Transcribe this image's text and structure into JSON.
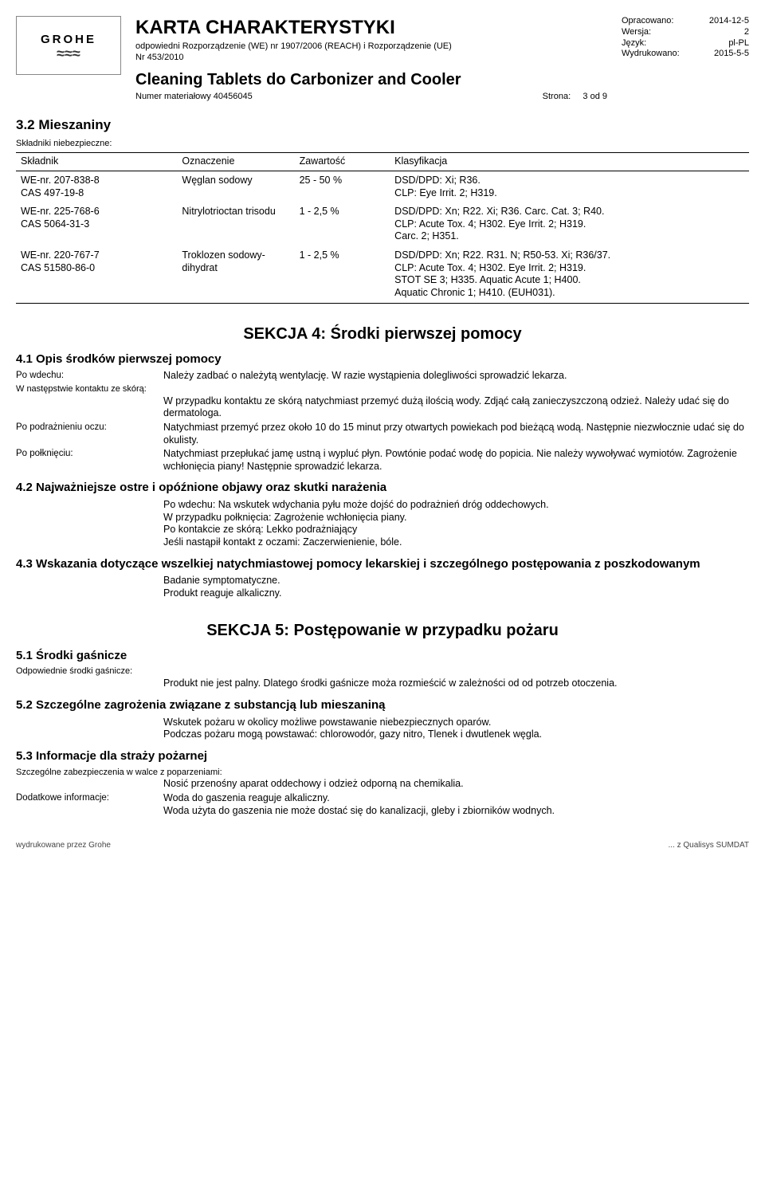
{
  "logo_text": "GROHE",
  "header": {
    "karta": "KARTA CHARAKTERYSTYKI",
    "regl1": "odpowiedni Rozporządzenie (WE) nr 1907/2006 (REACH) i Rozporządzenie (UE)",
    "regl2": "Nr 453/2010",
    "product": "Cleaning Tablets do Carbonizer and Cooler",
    "matlabel": "Numer materiałowy 40456045",
    "page_label": "Strona:",
    "page_val": "3 od 9"
  },
  "meta": {
    "opr_l": "Opracowano:",
    "opr_v": "2014-12-5",
    "wer_l": "Wersja:",
    "wer_v": "2",
    "jez_l": "Język:",
    "jez_v": "pl-PL",
    "wyd_l": "Wydrukowano:",
    "wyd_v": "2015-5-5"
  },
  "s3": {
    "h": "3.2 Mieszaniny",
    "sub": "Składniki niebezpieczne:",
    "cols": [
      "Składnik",
      "Oznaczenie",
      "Zawartość",
      "Klasyfikacja"
    ],
    "rows": [
      {
        "c0": "WE-nr. 207-838-8\nCAS 497-19-8",
        "c1": "Węglan sodowy",
        "c2": "25 - 50 %",
        "c3": "DSD/DPD: Xi; R36.\nCLP: Eye Irrit. 2; H319."
      },
      {
        "c0": "WE-nr. 225-768-6\nCAS 5064-31-3",
        "c1": "Nitrylotrioctan trisodu",
        "c2": "1 - 2,5 %",
        "c3": "DSD/DPD: Xn; R22.  Xi; R36.  Carc. Cat. 3; R40.\nCLP: Acute Tox. 4; H302.  Eye Irrit. 2; H319.\nCarc. 2; H351."
      },
      {
        "c0": "WE-nr. 220-767-7\nCAS 51580-86-0",
        "c1": "Troklozen sodowy-dihydrat",
        "c2": "1 - 2,5 %",
        "c3": "DSD/DPD: Xn; R22.  R31.  N; R50-53.  Xi; R36/37.\nCLP: Acute Tox. 4; H302.  Eye Irrit. 2; H319.\nSTOT SE 3; H335.  Aquatic Acute 1; H400.\nAquatic Chronic 1; H410.  (EUH031)."
      }
    ]
  },
  "s4": {
    "title": "SEKCJA 4: Środki pierwszej pomocy",
    "h1": "4.1 Opis środków pierwszej pomocy",
    "inhale_l": "Po wdechu:",
    "inhale_v": "Należy zadbać o należytą wentylację. W razie wystąpienia dolegliwości sprowadzić lekarza.",
    "skin_l": "W następstwie kontaktu ze skórą:",
    "skin_v": "W przypadku kontaktu ze skórą natychmiast przemyć dużą ilością wody. Zdjąć całą zanieczyszczoną odzież. Należy udać się do dermatologa.",
    "eye_l": "Po podrażnieniu oczu:",
    "eye_v": "Natychmiast przemyć przez około 10 do 15 minut przy otwartych powiekach pod bieżącą wodą. Następnie niezwłocznie udać się do okulisty.",
    "ing_l": "Po połknięciu:",
    "ing_v": "Natychmiast przepłukać jamę ustną i wypluć płyn. Powtónie podać wodę do popicia. Nie należy wywoływać wymiotów. Zagrożenie wchłonięcia piany! Następnie sprowadzić lekarza.",
    "h2": "4.2 Najważniejsze ostre i opóźnione objawy oraz skutki narażenia",
    "b2a": "Po wdechu:  Na wskutek wdychania pyłu może dojść do podrażnień dróg oddechowych.",
    "b2b": "W przypadku połknięcia:  Zagrożenie wchłonięcia piany.",
    "b2c": "Po kontakcie ze skórą:  Lekko podrażniający",
    "b2d": "Jeśli nastąpił kontakt z oczami:  Zaczerwienienie, bóle.",
    "h3": "4.3 Wskazania dotyczące wszelkiej natychmiastowej pomocy lekarskiej i szczególnego postępowania z poszkodowanym",
    "b3a": "Badanie symptomatyczne.",
    "b3b": "Produkt reaguje alkaliczny."
  },
  "s5": {
    "title": "SEKCJA 5: Postępowanie w przypadku pożaru",
    "h1": "5.1 Środki gaśnicze",
    "ext_l": "Odpowiednie środki gaśnicze:",
    "ext_v": "Produkt nie jest palny. Dlatego środki gaśnicze moża rozmieścić w zależności od od potrzeb otoczenia.",
    "h2": "5.2 Szczególne zagrożenia związane z substancją lub mieszaniną",
    "b2a": "Wskutek pożaru w okolicy możliwe powstawanie niebezpiecznych oparów.",
    "b2b": "Podczas pożaru mogą powstawać: chlorowodór, gazy nitro, Tlenek i dwutlenek węgla.",
    "h3": "5.3 Informacje dla straży pożarnej",
    "prot_l": "Szczególne zabezpieczenia w walce z poparzeniami:",
    "prot_v": "Nosić przenośny aparat oddechowy i odzież odporną na chemikalia.",
    "add_l": "Dodatkowe informacje:",
    "add_v": "Woda do gaszenia reaguje alkaliczny.\nWoda użyta do gaszenia nie może dostać się do kanalizacji, gleby i zbiorników wodnych."
  },
  "footer": {
    "left": "wydrukowane przez Grohe",
    "right": "... z Qualisys SUMDAT"
  }
}
